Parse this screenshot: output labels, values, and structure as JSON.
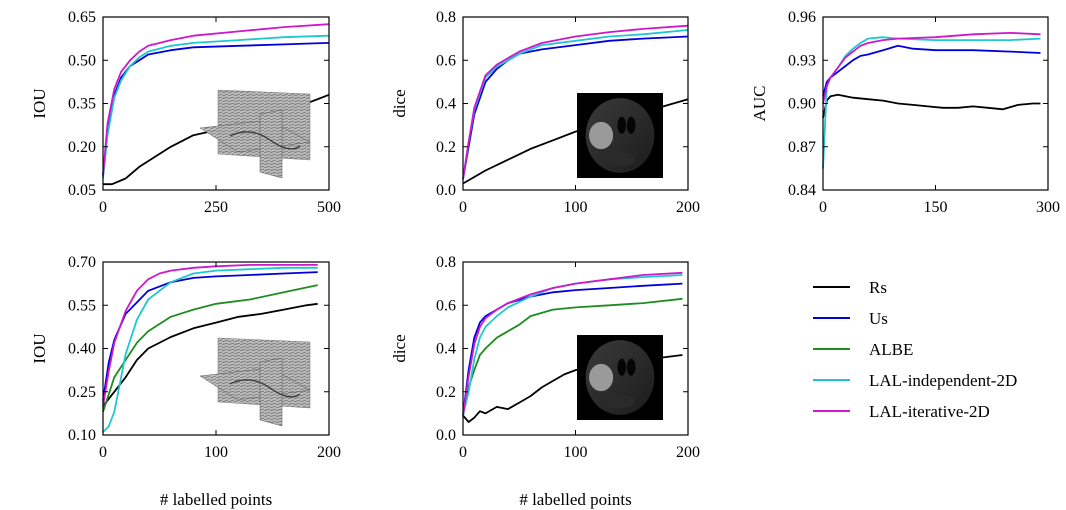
{
  "chart_data": [
    {
      "type": "line",
      "ylabel": "IOU",
      "xlabel": "",
      "xlim": [
        0,
        500
      ],
      "ylim": [
        0.05,
        0.65
      ],
      "xticks": [
        "0",
        "250",
        "500"
      ],
      "yticks": [
        "0.05",
        "0.20",
        "0.35",
        "0.50",
        "0.65"
      ],
      "inset": "3D volume slices (grayscale)",
      "series": [
        {
          "name": "Rs",
          "x": [
            0,
            20,
            50,
            80,
            110,
            150,
            200,
            230,
            260,
            300,
            350,
            400,
            450,
            500
          ],
          "y": [
            0.07,
            0.07,
            0.09,
            0.13,
            0.16,
            0.2,
            0.24,
            0.25,
            0.26,
            0.28,
            0.3,
            0.32,
            0.35,
            0.38
          ]
        },
        {
          "name": "Us",
          "x": [
            0,
            10,
            25,
            40,
            60,
            80,
            100,
            150,
            200,
            300,
            400,
            500
          ],
          "y": [
            0.1,
            0.25,
            0.38,
            0.44,
            0.48,
            0.5,
            0.52,
            0.535,
            0.545,
            0.55,
            0.555,
            0.56
          ]
        },
        {
          "name": "LAL-independent-2D",
          "x": [
            0,
            10,
            25,
            40,
            60,
            80,
            100,
            150,
            200,
            300,
            400,
            500
          ],
          "y": [
            0.09,
            0.24,
            0.37,
            0.43,
            0.48,
            0.51,
            0.53,
            0.55,
            0.56,
            0.57,
            0.58,
            0.585
          ]
        },
        {
          "name": "LAL-iterative-2D",
          "x": [
            0,
            10,
            25,
            40,
            60,
            80,
            100,
            150,
            200,
            300,
            400,
            500
          ],
          "y": [
            0.1,
            0.28,
            0.4,
            0.46,
            0.5,
            0.53,
            0.55,
            0.57,
            0.585,
            0.6,
            0.615,
            0.625
          ]
        }
      ]
    },
    {
      "type": "line",
      "ylabel": "dice",
      "xlabel": "",
      "xlim": [
        0,
        200
      ],
      "ylim": [
        0,
        0.8
      ],
      "xticks": [
        "0",
        "100",
        "200"
      ],
      "yticks": [
        "0.0",
        "0.2",
        "0.4",
        "0.6",
        "0.8"
      ],
      "inset": "MRI brain slice",
      "series": [
        {
          "name": "Rs",
          "x": [
            0,
            10,
            20,
            40,
            60,
            80,
            100,
            120,
            140,
            160,
            180,
            200
          ],
          "y": [
            0.03,
            0.06,
            0.09,
            0.14,
            0.19,
            0.23,
            0.27,
            0.3,
            0.33,
            0.36,
            0.39,
            0.42
          ]
        },
        {
          "name": "Us",
          "x": [
            0,
            5,
            10,
            20,
            30,
            40,
            50,
            70,
            100,
            130,
            160,
            200
          ],
          "y": [
            0.05,
            0.2,
            0.35,
            0.5,
            0.56,
            0.6,
            0.63,
            0.65,
            0.67,
            0.69,
            0.7,
            0.71
          ]
        },
        {
          "name": "LAL-independent-2D",
          "x": [
            0,
            5,
            10,
            20,
            30,
            40,
            50,
            70,
            100,
            130,
            160,
            200
          ],
          "y": [
            0.05,
            0.22,
            0.37,
            0.52,
            0.57,
            0.6,
            0.63,
            0.67,
            0.69,
            0.71,
            0.72,
            0.74
          ]
        },
        {
          "name": "LAL-iterative-2D",
          "x": [
            0,
            5,
            10,
            20,
            30,
            40,
            50,
            70,
            100,
            130,
            160,
            200
          ],
          "y": [
            0.05,
            0.22,
            0.38,
            0.53,
            0.58,
            0.61,
            0.64,
            0.68,
            0.71,
            0.73,
            0.745,
            0.76
          ]
        }
      ]
    },
    {
      "type": "line",
      "ylabel": "AUC",
      "xlabel": "",
      "xlim": [
        0,
        300
      ],
      "ylim": [
        0.84,
        0.96
      ],
      "xticks": [
        "0",
        "150",
        "300"
      ],
      "yticks": [
        "0.84",
        "0.87",
        "0.90",
        "0.93",
        "0.96"
      ],
      "series": [
        {
          "name": "Rs",
          "x": [
            0,
            5,
            10,
            20,
            30,
            40,
            60,
            80,
            100,
            120,
            140,
            160,
            180,
            200,
            220,
            240,
            260,
            280,
            290
          ],
          "y": [
            0.89,
            0.902,
            0.905,
            0.906,
            0.905,
            0.904,
            0.903,
            0.902,
            0.9,
            0.899,
            0.898,
            0.897,
            0.897,
            0.898,
            0.897,
            0.896,
            0.899,
            0.9,
            0.9
          ]
        },
        {
          "name": "Us",
          "x": [
            0,
            5,
            10,
            20,
            30,
            40,
            50,
            60,
            80,
            100,
            120,
            150,
            200,
            250,
            290
          ],
          "y": [
            0.905,
            0.915,
            0.918,
            0.922,
            0.926,
            0.93,
            0.933,
            0.934,
            0.937,
            0.94,
            0.938,
            0.937,
            0.937,
            0.936,
            0.935
          ]
        },
        {
          "name": "LAL-independent-2D",
          "x": [
            0,
            5,
            10,
            20,
            30,
            40,
            50,
            60,
            80,
            100,
            150,
            200,
            250,
            290
          ],
          "y": [
            0.855,
            0.912,
            0.918,
            0.925,
            0.933,
            0.938,
            0.942,
            0.945,
            0.946,
            0.945,
            0.944,
            0.944,
            0.944,
            0.945
          ]
        },
        {
          "name": "LAL-iterative-2D",
          "x": [
            0,
            5,
            10,
            20,
            30,
            40,
            50,
            60,
            80,
            100,
            150,
            200,
            250,
            290
          ],
          "y": [
            0.9,
            0.912,
            0.918,
            0.925,
            0.932,
            0.936,
            0.94,
            0.942,
            0.944,
            0.945,
            0.946,
            0.948,
            0.949,
            0.948
          ]
        }
      ]
    },
    {
      "type": "line",
      "ylabel": "IOU",
      "xlabel": "# labelled points",
      "xlim": [
        0,
        200
      ],
      "ylim": [
        0.1,
        0.7
      ],
      "xticks": [
        "0",
        "100",
        "200"
      ],
      "yticks": [
        "0.10",
        "0.25",
        "0.40",
        "0.55",
        "0.70"
      ],
      "inset": "3D volume slices (grayscale)",
      "series": [
        {
          "name": "Rs",
          "x": [
            0,
            10,
            20,
            30,
            40,
            60,
            80,
            100,
            120,
            140,
            160,
            180,
            190
          ],
          "y": [
            0.2,
            0.25,
            0.3,
            0.36,
            0.4,
            0.44,
            0.47,
            0.49,
            0.51,
            0.52,
            0.535,
            0.55,
            0.555
          ]
        },
        {
          "name": "Us",
          "x": [
            0,
            5,
            10,
            20,
            30,
            40,
            60,
            80,
            100,
            130,
            160,
            190
          ],
          "y": [
            0.22,
            0.35,
            0.43,
            0.52,
            0.56,
            0.6,
            0.63,
            0.645,
            0.65,
            0.655,
            0.66,
            0.665
          ]
        },
        {
          "name": "ALBE",
          "x": [
            0,
            10,
            20,
            30,
            40,
            60,
            80,
            100,
            130,
            160,
            190
          ],
          "y": [
            0.18,
            0.3,
            0.36,
            0.42,
            0.46,
            0.51,
            0.535,
            0.555,
            0.57,
            0.595,
            0.62
          ]
        },
        {
          "name": "LAL-independent-2D",
          "x": [
            0,
            5,
            10,
            15,
            20,
            30,
            40,
            60,
            80,
            100,
            130,
            160,
            190
          ],
          "y": [
            0.11,
            0.13,
            0.18,
            0.28,
            0.38,
            0.5,
            0.57,
            0.63,
            0.66,
            0.67,
            0.675,
            0.68,
            0.68
          ]
        },
        {
          "name": "LAL-iterative-2D",
          "x": [
            0,
            5,
            10,
            20,
            30,
            40,
            50,
            60,
            80,
            100,
            130,
            160,
            190
          ],
          "y": [
            0.2,
            0.32,
            0.42,
            0.53,
            0.6,
            0.64,
            0.66,
            0.67,
            0.68,
            0.685,
            0.69,
            0.69,
            0.69
          ]
        }
      ]
    },
    {
      "type": "line",
      "ylabel": "dice",
      "xlabel": "# labelled points",
      "xlim": [
        0,
        200
      ],
      "ylim": [
        0,
        0.8
      ],
      "xticks": [
        "0",
        "100",
        "200"
      ],
      "yticks": [
        "0.0",
        "0.2",
        "0.4",
        "0.6",
        "0.8"
      ],
      "inset": "MRI brain slice",
      "series": [
        {
          "name": "Rs",
          "x": [
            0,
            5,
            10,
            15,
            20,
            30,
            40,
            50,
            60,
            70,
            80,
            90,
            100,
            120,
            140,
            160,
            180,
            195
          ],
          "y": [
            0.09,
            0.06,
            0.08,
            0.11,
            0.1,
            0.13,
            0.12,
            0.15,
            0.18,
            0.22,
            0.25,
            0.28,
            0.3,
            0.32,
            0.34,
            0.35,
            0.36,
            0.37
          ]
        },
        {
          "name": "Us",
          "x": [
            0,
            5,
            10,
            15,
            20,
            30,
            40,
            60,
            80,
            100,
            130,
            160,
            195
          ],
          "y": [
            0.09,
            0.3,
            0.45,
            0.52,
            0.55,
            0.58,
            0.61,
            0.64,
            0.66,
            0.67,
            0.68,
            0.69,
            0.7
          ]
        },
        {
          "name": "ALBE",
          "x": [
            0,
            5,
            10,
            15,
            20,
            30,
            40,
            50,
            60,
            80,
            100,
            130,
            160,
            195
          ],
          "y": [
            0.09,
            0.22,
            0.3,
            0.37,
            0.4,
            0.45,
            0.48,
            0.51,
            0.55,
            0.58,
            0.59,
            0.6,
            0.61,
            0.63
          ]
        },
        {
          "name": "LAL-independent-2D",
          "x": [
            0,
            5,
            10,
            15,
            20,
            30,
            40,
            60,
            80,
            100,
            130,
            160,
            195
          ],
          "y": [
            0.09,
            0.2,
            0.35,
            0.45,
            0.5,
            0.55,
            0.59,
            0.64,
            0.68,
            0.7,
            0.72,
            0.73,
            0.74
          ]
        },
        {
          "name": "LAL-iterative-2D",
          "x": [
            0,
            5,
            10,
            15,
            20,
            30,
            40,
            60,
            80,
            100,
            130,
            160,
            195
          ],
          "y": [
            0.09,
            0.27,
            0.42,
            0.5,
            0.54,
            0.58,
            0.61,
            0.65,
            0.68,
            0.7,
            0.72,
            0.74,
            0.75
          ]
        }
      ]
    }
  ],
  "legend": {
    "placement": "bottom-right",
    "entries": [
      {
        "name": "Rs",
        "color": "#000000"
      },
      {
        "name": "Us",
        "color": "#0000dd"
      },
      {
        "name": "ALBE",
        "color": "#1e8c1e"
      },
      {
        "name": "LAL-independent-2D",
        "color": "#1fc7d0"
      },
      {
        "name": "LAL-iterative-2D",
        "color": "#cc19cc"
      }
    ]
  },
  "colors": {
    "Rs": "#000000",
    "Us": "#0000dd",
    "ALBE": "#1e8c1e",
    "LAL-independent-2D": "#1fc7d0",
    "LAL-iterative-2D": "#cc19cc"
  }
}
